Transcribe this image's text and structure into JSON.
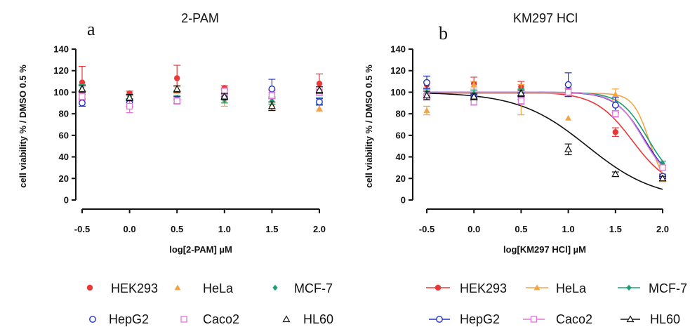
{
  "colors": {
    "HEK293": "#e8383a",
    "HeLa": "#f5a443",
    "MCF-7": "#1a9e73",
    "HepG2": "#2233cc",
    "Caco2": "#e276d8",
    "HL60": "#111111"
  },
  "chart_data": [
    {
      "type": "scatter",
      "panel_letter": "a",
      "title": "2-PAM",
      "xlabel": "log[2-PAM] µM",
      "ylabel": "cell viability % / DMSO 0.5 %",
      "xlim": [
        -0.5,
        2.0
      ],
      "ylim": [
        0,
        140
      ],
      "xticks": [
        "-0.5",
        "0.0",
        "0.5",
        "1.0",
        "1.5",
        "2.0"
      ],
      "xtick_values": [
        -0.5,
        0.0,
        0.5,
        1.0,
        1.5,
        2.0
      ],
      "yticks": [
        "0",
        "20",
        "40",
        "60",
        "80",
        "100",
        "120",
        "140"
      ],
      "ytick_values": [
        0,
        20,
        40,
        60,
        80,
        100,
        120,
        140
      ],
      "x": [
        -0.5,
        0.0,
        0.5,
        1.0,
        1.5,
        2.0
      ],
      "fit_curves": false,
      "legend_position": "bottom",
      "series": [
        {
          "name": "HEK293",
          "marker": "circle-filled",
          "values": [
            109,
            99,
            113,
            104,
            99,
            108
          ],
          "errors": [
            15,
            2,
            12,
            2,
            3,
            9
          ]
        },
        {
          "name": "HeLa",
          "marker": "triangle-filled",
          "values": [
            95,
            96,
            102,
            92,
            89,
            85
          ],
          "errors": [
            3,
            2,
            3,
            5,
            6,
            3
          ]
        },
        {
          "name": "MCF-7",
          "marker": "diamond-filled",
          "values": [
            104,
            96,
            95,
            93,
            92,
            92
          ],
          "errors": [
            3,
            2,
            2,
            3,
            3,
            3
          ]
        },
        {
          "name": "HepG2",
          "marker": "circle-open",
          "values": [
            90,
            90,
            93,
            99,
            103,
            91
          ],
          "errors": [
            3,
            3,
            3,
            4,
            9,
            3
          ]
        },
        {
          "name": "Caco2",
          "marker": "square-open",
          "values": [
            96,
            87,
            92,
            101,
            97,
            100
          ],
          "errors": [
            3,
            6,
            3,
            3,
            3,
            3
          ]
        },
        {
          "name": "HL60",
          "marker": "triangle-open",
          "values": [
            103,
            95,
            103,
            96,
            87,
            102
          ],
          "errors": [
            3,
            3,
            3,
            3,
            4,
            3
          ]
        }
      ]
    },
    {
      "type": "line",
      "panel_letter": "b",
      "title": "KM297 HCl",
      "xlabel": "log[KM297 HCl] µM",
      "ylabel": "cell viability % / DMSO 0.5 %",
      "xlim": [
        -0.5,
        2.0
      ],
      "ylim": [
        0,
        140
      ],
      "xticks": [
        "-0.5",
        "0.0",
        "0.5",
        "1.0",
        "1.5",
        "2.0"
      ],
      "xtick_values": [
        -0.5,
        0.0,
        0.5,
        1.0,
        1.5,
        2.0
      ],
      "yticks": [
        "0",
        "20",
        "40",
        "60",
        "80",
        "100",
        "120",
        "140"
      ],
      "ytick_values": [
        0,
        20,
        40,
        60,
        80,
        100,
        120,
        140
      ],
      "x": [
        -0.5,
        0.0,
        0.5,
        1.0,
        1.5,
        2.0
      ],
      "fit_curves": true,
      "legend_position": "bottom",
      "series": [
        {
          "name": "HEK293",
          "marker": "circle-filled",
          "values": [
            107,
            108,
            105,
            101,
            63,
            20
          ],
          "errors": [
            3,
            6,
            5,
            3,
            4,
            2
          ],
          "fit": {
            "top": 100,
            "bottom": 10,
            "logEC50": 1.68,
            "hill": 2.2
          }
        },
        {
          "name": "HeLa",
          "marker": "triangle-filled",
          "values": [
            83,
            107,
            93,
            76,
            98,
            19
          ],
          "errors": [
            4,
            3,
            14,
            0,
            5,
            2
          ],
          "fit": {
            "top": 99,
            "bottom": 10,
            "logEC50": 1.86,
            "hill": 5.0
          }
        },
        {
          "name": "MCF-7",
          "marker": "diamond-filled",
          "values": [
            100,
            99,
            100,
            98,
            87,
            34
          ],
          "errors": [
            3,
            3,
            3,
            2,
            4,
            2
          ],
          "fit": {
            "top": 100,
            "bottom": 15,
            "logEC50": 1.84,
            "hill": 3.0
          }
        },
        {
          "name": "HepG2",
          "marker": "circle-open",
          "values": [
            109,
            95,
            96,
            107,
            88,
            22
          ],
          "errors": [
            6,
            3,
            3,
            11,
            7,
            2
          ],
          "fit": {
            "top": 100,
            "bottom": 12,
            "logEC50": 1.81,
            "hill": 2.8
          }
        },
        {
          "name": "Caco2",
          "marker": "square-open",
          "values": [
            96,
            91,
            92,
            100,
            80,
            30
          ],
          "errors": [
            3,
            3,
            3,
            3,
            3,
            2
          ],
          "fit": {
            "top": 100,
            "bottom": 15,
            "logEC50": 1.79,
            "hill": 3.0
          }
        },
        {
          "name": "HL60",
          "marker": "triangle-open",
          "values": [
            97,
            96,
            99,
            47,
            24,
            20
          ],
          "errors": [
            4,
            3,
            3,
            5,
            2,
            2
          ],
          "fit": {
            "top": 100,
            "bottom": 0,
            "logEC50": 1.2,
            "hill": 1.2
          }
        }
      ]
    }
  ]
}
